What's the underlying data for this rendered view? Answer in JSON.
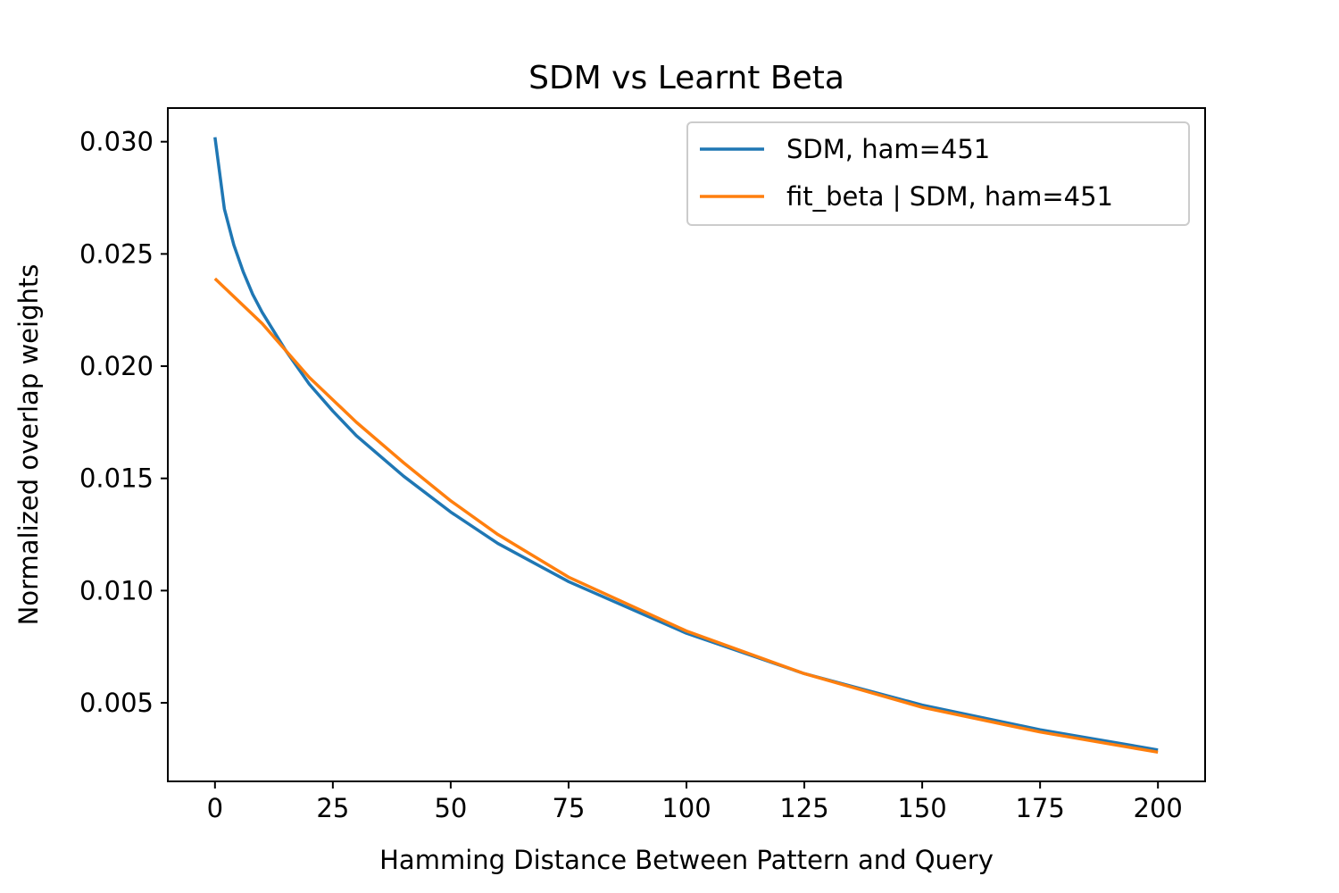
{
  "chart_data": {
    "type": "line",
    "title": "SDM vs Learnt Beta",
    "xlabel": "Hamming Distance Between Pattern and Query",
    "ylabel": "Normalized overlap weights",
    "xlim": [
      -10,
      210
    ],
    "ylim": [
      0.0015,
      0.0315
    ],
    "xticks": [
      0,
      25,
      50,
      75,
      100,
      125,
      150,
      175,
      200
    ],
    "xtick_labels": [
      "0",
      "25",
      "50",
      "75",
      "100",
      "125",
      "150",
      "175",
      "200"
    ],
    "yticks": [
      0.005,
      0.01,
      0.015,
      0.02,
      0.025,
      0.03
    ],
    "ytick_labels": [
      "0.005",
      "0.010",
      "0.015",
      "0.020",
      "0.025",
      "0.030"
    ],
    "grid": false,
    "legend_position": "top-right",
    "series": [
      {
        "name": "SDM, ham=451",
        "color": "#1f77b4",
        "x": [
          0,
          2,
          4,
          6,
          8,
          10,
          15,
          20,
          25,
          30,
          40,
          50,
          60,
          75,
          100,
          125,
          150,
          175,
          200
        ],
        "y": [
          0.0302,
          0.027,
          0.0254,
          0.0242,
          0.0232,
          0.0224,
          0.0207,
          0.0192,
          0.018,
          0.0169,
          0.0151,
          0.0135,
          0.0121,
          0.0104,
          0.0081,
          0.0063,
          0.0049,
          0.0038,
          0.0029
        ]
      },
      {
        "name": "fit_beta | SDM, ham=451",
        "color": "#ff7f0e",
        "x": [
          0,
          10,
          20,
          25,
          30,
          40,
          50,
          60,
          75,
          100,
          125,
          150,
          175,
          200
        ],
        "y": [
          0.0239,
          0.0219,
          0.0195,
          0.0185,
          0.0175,
          0.0157,
          0.014,
          0.0125,
          0.0106,
          0.0082,
          0.0063,
          0.0048,
          0.0037,
          0.0028
        ]
      }
    ]
  }
}
